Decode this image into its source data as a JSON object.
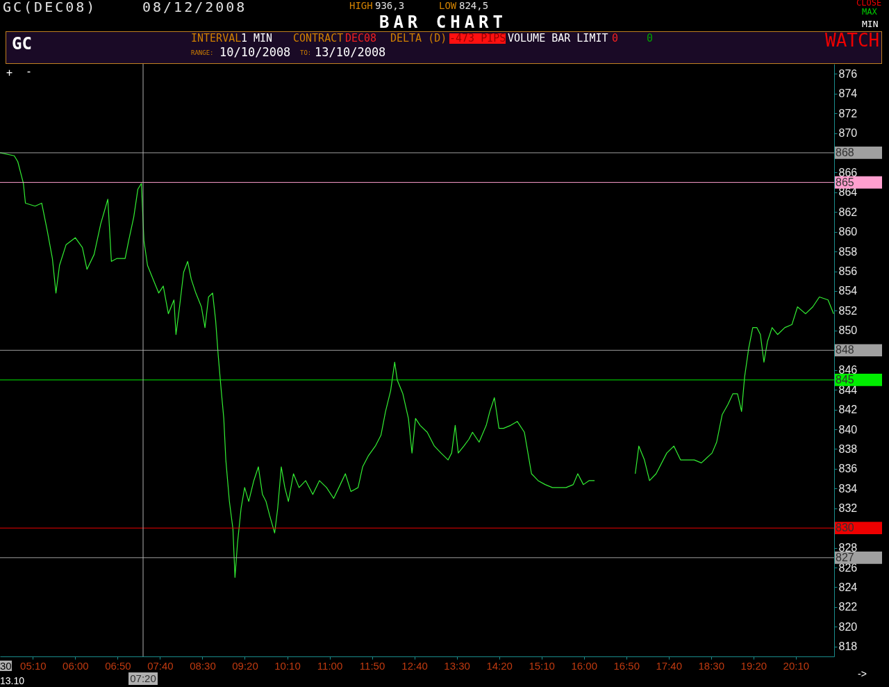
{
  "chart_data": {
    "type": "line",
    "title": "BAR CHART",
    "annotations": [
      "GC(DEC08)",
      "08/12/2008",
      "HIGH",
      "936,3",
      "LOW",
      "824,5",
      "CLOSE",
      "MAX",
      "MIN",
      "GC",
      "INTERVAL",
      "1 MIN",
      "CONTRACT",
      "DEC08",
      "DELTA (D)",
      "-473 PIPS",
      "VOLUME BAR LIMIT",
      "0",
      "0",
      "RANGE:",
      "10/10/2008",
      "TO:",
      "13/10/2008",
      "WATCH",
      "+",
      "-",
      "30",
      "13.10",
      "->"
    ],
    "series": [
      {
        "color": "#33ee33",
        "x": [
          4.52,
          4.8,
          4.87,
          4.98,
          5.02,
          5.21,
          5.34,
          5.45,
          5.55,
          5.62,
          5.69,
          5.82,
          6.0,
          6.14,
          6.23,
          6.37,
          6.5,
          6.64,
          6.71,
          6.82,
          6.98,
          7.05,
          7.15,
          7.23,
          7.3,
          7.35,
          7.42,
          7.53,
          7.64,
          7.73,
          7.83,
          7.94,
          7.98,
          8.05,
          8.13,
          8.21,
          8.28,
          8.37,
          8.48,
          8.55,
          8.62,
          8.7,
          8.76,
          8.81,
          8.87,
          8.92,
          8.96,
          9.03,
          9.1,
          9.14,
          9.19,
          9.26,
          9.33,
          9.41,
          9.51,
          9.6,
          9.68,
          9.75,
          9.82,
          9.92,
          9.98,
          10.05,
          10.12,
          10.19,
          10.29,
          10.4,
          10.53,
          10.67,
          10.8,
          10.94,
          11.08,
          11.21,
          11.31,
          11.42,
          11.56,
          11.65,
          11.76,
          11.9,
          12.01,
          12.1,
          12.2,
          12.28,
          12.33,
          12.44,
          12.55,
          12.62,
          12.69,
          12.78,
          12.92,
          13.06,
          13.19,
          13.33,
          13.4,
          13.47,
          13.53,
          13.64,
          13.74,
          13.81,
          13.94,
          14.08,
          14.15,
          14.24,
          14.33,
          14.42,
          14.56,
          14.69,
          14.83,
          14.9,
          14.97,
          15.1,
          15.24,
          15.38,
          15.51,
          15.65,
          15.79,
          15.88,
          15.99,
          16.1,
          16.21,
          16.5,
          17.01,
          17.08,
          17.19,
          17.29,
          17.42,
          17.63,
          17.77,
          17.9,
          18.04,
          18.17,
          18.31,
          18.52,
          18.61,
          18.72,
          18.83,
          18.93,
          19.02,
          19.1,
          19.16,
          19.24,
          19.32,
          19.4,
          19.47,
          19.54,
          19.61,
          19.7,
          19.81,
          19.95,
          20.09,
          20.2,
          20.29,
          20.36,
          20.5,
          20.63,
          20.8,
          20.91
        ],
        "values": [
          868.0,
          867.7,
          867.1,
          864.9,
          862.9,
          862.6,
          862.9,
          860.1,
          857.3,
          853.8,
          856.6,
          858.7,
          859.4,
          858.4,
          856.2,
          857.7,
          860.8,
          863.3,
          857.0,
          857.3,
          857.3,
          859.1,
          861.5,
          864.3,
          864.9,
          859.1,
          856.6,
          855.2,
          853.8,
          854.5,
          851.7,
          853.1,
          849.6,
          852.4,
          855.9,
          857.0,
          855.2,
          853.8,
          852.4,
          850.3,
          853.4,
          853.8,
          851.0,
          847.5,
          843.9,
          841.1,
          836.9,
          832.7,
          829.9,
          825.0,
          828.5,
          832.0,
          834.1,
          832.7,
          834.8,
          836.2,
          833.4,
          832.7,
          831.3,
          829.5,
          832.0,
          836.2,
          834.1,
          832.7,
          835.5,
          834.1,
          834.8,
          833.4,
          834.8,
          834.1,
          833.0,
          834.4,
          835.5,
          833.7,
          834.1,
          836.2,
          837.3,
          838.3,
          839.4,
          841.8,
          843.9,
          846.8,
          845.0,
          843.6,
          841.1,
          837.6,
          841.1,
          840.4,
          839.7,
          838.3,
          837.6,
          836.9,
          837.6,
          840.4,
          837.6,
          838.3,
          839.0,
          839.7,
          838.7,
          840.4,
          841.8,
          843.2,
          840.1,
          840.1,
          840.4,
          840.8,
          839.7,
          837.6,
          835.5,
          834.8,
          834.4,
          834.1,
          834.1,
          834.1,
          834.4,
          835.5,
          834.4,
          834.8,
          834.8,
          null,
          835.5,
          838.3,
          836.9,
          834.8,
          835.5,
          837.6,
          838.3,
          836.9,
          836.9,
          836.9,
          836.6,
          837.6,
          838.7,
          841.5,
          842.5,
          843.6,
          843.6,
          841.8,
          845.3,
          848.2,
          850.3,
          850.3,
          849.6,
          846.8,
          848.9,
          850.3,
          849.6,
          850.3,
          850.6,
          852.4,
          852.0,
          851.7,
          852.4,
          853.4,
          853.1,
          851.7
        ]
      }
    ],
    "xlim": [
      4.52,
      20.92
    ],
    "xticks": [
      {
        "value": 5.1667,
        "label": "05:10"
      },
      {
        "value": 6,
        "label": "06:00"
      },
      {
        "value": 6.8333,
        "label": "06:50"
      },
      {
        "value": 7.6667,
        "label": "07:40"
      },
      {
        "value": 8.5,
        "label": "08:30"
      },
      {
        "value": 9.3333,
        "label": "09:20"
      },
      {
        "value": 10.1667,
        "label": "10:10"
      },
      {
        "value": 11,
        "label": "11:00"
      },
      {
        "value": 11.8333,
        "label": "11:50"
      },
      {
        "value": 12.6667,
        "label": "12:40"
      },
      {
        "value": 13.5,
        "label": "13:30"
      },
      {
        "value": 14.3333,
        "label": "14:20"
      },
      {
        "value": 15.1667,
        "label": "15:10"
      },
      {
        "value": 16,
        "label": "16:00"
      },
      {
        "value": 16.8333,
        "label": "16:50"
      },
      {
        "value": 17.6667,
        "label": "17:40"
      },
      {
        "value": 18.5,
        "label": "18:30"
      },
      {
        "value": 19.3333,
        "label": "19:20"
      },
      {
        "value": 20.1667,
        "label": "20:10"
      }
    ],
    "ylim": [
      817,
      877
    ],
    "yticks": [
      818,
      820,
      822,
      824,
      826,
      828,
      830,
      832,
      834,
      836,
      838,
      840,
      842,
      844,
      846,
      848,
      850,
      852,
      854,
      856,
      858,
      860,
      862,
      864,
      866,
      868,
      870,
      872,
      874,
      876
    ],
    "ref_lines": [
      {
        "axis": "y",
        "value": 868,
        "label": "868",
        "color": "#a0a0a0"
      },
      {
        "axis": "y",
        "value": 865,
        "label": "865",
        "color": "#ff9fcf"
      },
      {
        "axis": "y",
        "value": 848,
        "label": "848",
        "color": "#a0a0a0"
      },
      {
        "axis": "y",
        "value": 845,
        "label": "845",
        "color": "#00ee00"
      },
      {
        "axis": "y",
        "value": 830,
        "label": "830",
        "color": "#ee0000"
      },
      {
        "axis": "y",
        "value": 827,
        "label": "827",
        "color": "#a0a0a0"
      },
      {
        "axis": "x",
        "value": 7.3333,
        "label": "07:20",
        "color": "#b0b0b0"
      }
    ],
    "grid": false
  }
}
